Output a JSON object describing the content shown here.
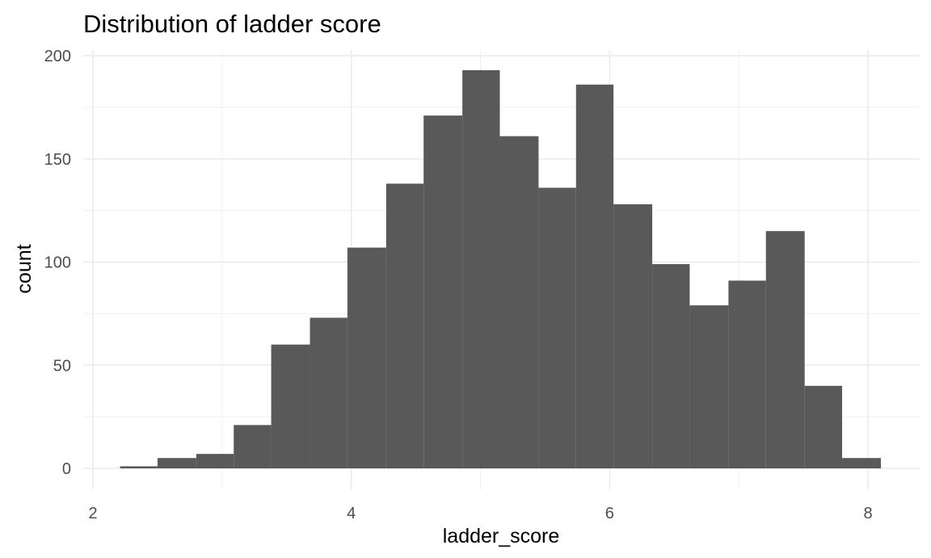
{
  "chart_data": {
    "type": "bar",
    "title": "Distribution of ladder score",
    "xlabel": "ladder_score",
    "ylabel": "count",
    "xlim": [
      2,
      8.2
    ],
    "ylim": [
      0,
      200
    ],
    "xticks": [
      2,
      4,
      6,
      8
    ],
    "yticks": [
      0,
      50,
      100,
      150,
      200
    ],
    "grid": true,
    "legend": "none",
    "bar_color": "#595959",
    "bins": [
      {
        "x0": 2.21,
        "x1": 2.5,
        "count": 1
      },
      {
        "x0": 2.5,
        "x1": 2.8,
        "count": 5
      },
      {
        "x0": 2.8,
        "x1": 3.09,
        "count": 7
      },
      {
        "x0": 3.09,
        "x1": 3.38,
        "count": 21
      },
      {
        "x0": 3.38,
        "x1": 3.68,
        "count": 60
      },
      {
        "x0": 3.68,
        "x1": 3.97,
        "count": 73
      },
      {
        "x0": 3.97,
        "x1": 4.27,
        "count": 107
      },
      {
        "x0": 4.27,
        "x1": 4.56,
        "count": 138
      },
      {
        "x0": 4.56,
        "x1": 4.86,
        "count": 171
      },
      {
        "x0": 4.86,
        "x1": 5.15,
        "count": 193
      },
      {
        "x0": 5.15,
        "x1": 5.45,
        "count": 161
      },
      {
        "x0": 5.45,
        "x1": 5.74,
        "count": 136
      },
      {
        "x0": 5.74,
        "x1": 6.03,
        "count": 186
      },
      {
        "x0": 6.03,
        "x1": 6.33,
        "count": 128
      },
      {
        "x0": 6.33,
        "x1": 6.62,
        "count": 99
      },
      {
        "x0": 6.62,
        "x1": 6.92,
        "count": 79
      },
      {
        "x0": 6.92,
        "x1": 7.21,
        "count": 91
      },
      {
        "x0": 7.21,
        "x1": 7.51,
        "count": 115
      },
      {
        "x0": 7.51,
        "x1": 7.8,
        "count": 40
      },
      {
        "x0": 7.8,
        "x1": 8.1,
        "count": 5
      }
    ]
  }
}
